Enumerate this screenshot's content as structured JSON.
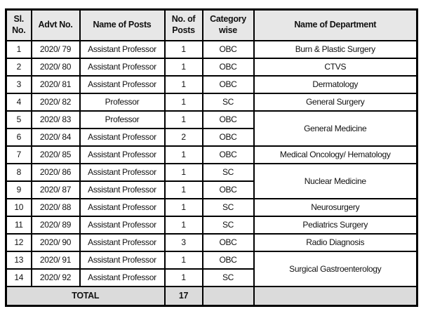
{
  "table": {
    "columns": [
      {
        "key": "sl",
        "label": "Sl. No."
      },
      {
        "key": "advt",
        "label": "Advt No."
      },
      {
        "key": "post",
        "label": "Name of Posts"
      },
      {
        "key": "num",
        "label": "No. of Posts"
      },
      {
        "key": "cat",
        "label": "Category wise"
      },
      {
        "key": "dept",
        "label": "Name of Department"
      }
    ],
    "rows": [
      {
        "sl": "1",
        "advt": "2020/ 79",
        "post": "Assistant Professor",
        "num": "1",
        "cat": "OBC",
        "dept": "Burn & Plastic Surgery",
        "dept_rowspan": 1
      },
      {
        "sl": "2",
        "advt": "2020/ 80",
        "post": "Assistant Professor",
        "num": "1",
        "cat": "OBC",
        "dept": "CTVS",
        "dept_rowspan": 1
      },
      {
        "sl": "3",
        "advt": "2020/ 81",
        "post": "Assistant Professor",
        "num": "1",
        "cat": "OBC",
        "dept": "Dermatology",
        "dept_rowspan": 1
      },
      {
        "sl": "4",
        "advt": "2020/ 82",
        "post": "Professor",
        "num": "1",
        "cat": "SC",
        "dept": "General Surgery",
        "dept_rowspan": 1
      },
      {
        "sl": "5",
        "advt": "2020/ 83",
        "post": "Professor",
        "num": "1",
        "cat": "OBC",
        "dept": "General Medicine",
        "dept_rowspan": 2
      },
      {
        "sl": "6",
        "advt": "2020/ 84",
        "post": "Assistant Professor",
        "num": "2",
        "cat": "OBC",
        "dept": null,
        "dept_rowspan": 0
      },
      {
        "sl": "7",
        "advt": "2020/ 85",
        "post": "Assistant Professor",
        "num": "1",
        "cat": "OBC",
        "dept": "Medical Oncology/ Hematology",
        "dept_rowspan": 1
      },
      {
        "sl": "8",
        "advt": "2020/ 86",
        "post": "Assistant Professor",
        "num": "1",
        "cat": "SC",
        "dept": "Nuclear Medicine",
        "dept_rowspan": 2
      },
      {
        "sl": "9",
        "advt": "2020/ 87",
        "post": "Assistant Professor",
        "num": "1",
        "cat": "OBC",
        "dept": null,
        "dept_rowspan": 0
      },
      {
        "sl": "10",
        "advt": "2020/ 88",
        "post": "Assistant Professor",
        "num": "1",
        "cat": "SC",
        "dept": "Neurosurgery",
        "dept_rowspan": 1
      },
      {
        "sl": "11",
        "advt": "2020/ 89",
        "post": "Assistant Professor",
        "num": "1",
        "cat": "SC",
        "dept": "Pediatrics Surgery",
        "dept_rowspan": 1
      },
      {
        "sl": "12",
        "advt": "2020/ 90",
        "post": "Assistant Professor",
        "num": "3",
        "cat": "OBC",
        "dept": "Radio Diagnosis",
        "dept_rowspan": 1
      },
      {
        "sl": "13",
        "advt": "2020/ 91",
        "post": "Assistant Professor",
        "num": "1",
        "cat": "OBC",
        "dept": "Surgical Gastroenterology",
        "dept_rowspan": 2
      },
      {
        "sl": "14",
        "advt": "2020/ 92",
        "post": "Assistant Professor",
        "num": "1",
        "cat": "SC",
        "dept": null,
        "dept_rowspan": 0
      }
    ],
    "total_row": {
      "label": "TOTAL",
      "total_posts": "17"
    }
  },
  "colors": {
    "border": "#000000",
    "header_bg": "#e7e7e7",
    "total_bg": "#dbdbdb",
    "row_bg": "#ffffff",
    "text": "#111111"
  }
}
